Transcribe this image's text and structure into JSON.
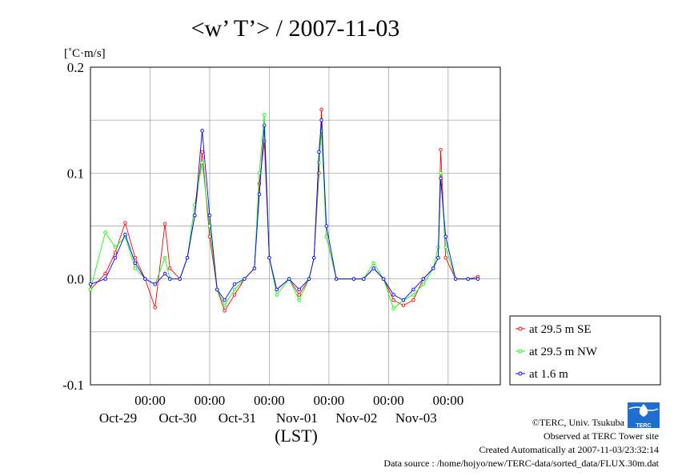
{
  "chart_data": {
    "type": "line",
    "title": "<w’ T’> / 2007-11-03",
    "ylabel": "[˚C·m/s]",
    "xlabel": "(LST)",
    "ylim": [
      -0.1,
      0.2
    ],
    "yticks": [
      "0.2",
      "0.1",
      "0.0",
      "-0.1"
    ],
    "xlim": [
      "2007-10-28T00:00",
      "2007-11-03T21:00"
    ],
    "xticks": [
      {
        "time": "00:00",
        "date": "Oct-29"
      },
      {
        "time": "00:00",
        "date": "Oct-30"
      },
      {
        "time": "00:00",
        "date": "Oct-31"
      },
      {
        "time": "00:00",
        "date": "Nov-01"
      },
      {
        "time": "00:00",
        "date": "Nov-02"
      },
      {
        "time": "00:00",
        "date": "Nov-03"
      }
    ],
    "grid": true,
    "legend_position": "bottom-right outside",
    "series": [
      {
        "name": "at 29.5 m SE",
        "color": "#ff0000",
        "points": [
          [
            "2007-10-28T00:00",
            -0.01
          ],
          [
            "2007-10-28T06:00",
            0.005
          ],
          [
            "2007-10-28T10:00",
            0.025
          ],
          [
            "2007-10-28T14:00",
            0.053
          ],
          [
            "2007-10-28T18:00",
            0.02
          ],
          [
            "2007-10-28T22:00",
            0.0
          ],
          [
            "2007-10-29T02:00",
            -0.027
          ],
          [
            "2007-10-29T06:00",
            0.052
          ],
          [
            "2007-10-29T08:00",
            0.01
          ],
          [
            "2007-10-29T12:00",
            0.0
          ],
          [
            "2007-10-29T15:00",
            0.02
          ],
          [
            "2007-10-29T18:00",
            0.06
          ],
          [
            "2007-10-29T21:00",
            0.12
          ],
          [
            "2007-10-30T00:00",
            0.04
          ],
          [
            "2007-10-30T03:00",
            -0.01
          ],
          [
            "2007-10-30T06:00",
            -0.03
          ],
          [
            "2007-10-30T10:00",
            -0.015
          ],
          [
            "2007-10-30T14:00",
            0.0
          ],
          [
            "2007-10-30T18:00",
            0.01
          ],
          [
            "2007-10-30T20:00",
            0.09
          ],
          [
            "2007-10-30T22:00",
            0.13
          ],
          [
            "2007-10-31T00:00",
            0.02
          ],
          [
            "2007-10-31T03:00",
            -0.01
          ],
          [
            "2007-10-31T08:00",
            0.0
          ],
          [
            "2007-10-31T12:00",
            -0.015
          ],
          [
            "2007-10-31T16:00",
            0.0
          ],
          [
            "2007-10-31T18:00",
            0.02
          ],
          [
            "2007-10-31T20:00",
            0.1
          ],
          [
            "2007-10-31T21:00",
            0.16
          ],
          [
            "2007-10-31T23:00",
            0.04
          ],
          [
            "2007-11-01T03:00",
            0.0
          ],
          [
            "2007-11-01T10:00",
            0.0
          ],
          [
            "2007-11-01T14:00",
            0.0
          ],
          [
            "2007-11-01T18:00",
            0.01
          ],
          [
            "2007-11-01T22:00",
            0.0
          ],
          [
            "2007-11-02T02:00",
            -0.02
          ],
          [
            "2007-11-02T06:00",
            -0.025
          ],
          [
            "2007-11-02T10:00",
            -0.02
          ],
          [
            "2007-11-02T14:00",
            0.0
          ],
          [
            "2007-11-02T18:00",
            0.01
          ],
          [
            "2007-11-02T20:00",
            0.02
          ],
          [
            "2007-11-02T21:00",
            0.122
          ],
          [
            "2007-11-02T23:00",
            0.02
          ],
          [
            "2007-11-03T03:00",
            0.0
          ],
          [
            "2007-11-03T08:00",
            0.0
          ],
          [
            "2007-11-03T12:00",
            0.002
          ]
        ]
      },
      {
        "name": "at 29.5 m NW",
        "color": "#00ff00",
        "points": [
          [
            "2007-10-28T00:00",
            -0.01
          ],
          [
            "2007-10-28T06:00",
            0.044
          ],
          [
            "2007-10-28T10:00",
            0.03
          ],
          [
            "2007-10-28T14:00",
            0.04
          ],
          [
            "2007-10-28T18:00",
            0.01
          ],
          [
            "2007-10-28T22:00",
            0.0
          ],
          [
            "2007-10-29T02:00",
            -0.005
          ],
          [
            "2007-10-29T06:00",
            0.02
          ],
          [
            "2007-10-29T08:00",
            0.0
          ],
          [
            "2007-10-29T12:00",
            0.0
          ],
          [
            "2007-10-29T15:00",
            0.02
          ],
          [
            "2007-10-29T18:00",
            0.07
          ],
          [
            "2007-10-29T21:00",
            0.11
          ],
          [
            "2007-10-30T00:00",
            0.05
          ],
          [
            "2007-10-30T03:00",
            -0.01
          ],
          [
            "2007-10-30T06:00",
            -0.025
          ],
          [
            "2007-10-30T10:00",
            -0.01
          ],
          [
            "2007-10-30T14:00",
            0.0
          ],
          [
            "2007-10-30T18:00",
            0.01
          ],
          [
            "2007-10-30T20:00",
            0.1
          ],
          [
            "2007-10-30T22:00",
            0.155
          ],
          [
            "2007-10-31T00:00",
            0.02
          ],
          [
            "2007-10-31T03:00",
            -0.015
          ],
          [
            "2007-10-31T08:00",
            0.0
          ],
          [
            "2007-10-31T12:00",
            -0.02
          ],
          [
            "2007-10-31T16:00",
            0.0
          ],
          [
            "2007-10-31T18:00",
            0.02
          ],
          [
            "2007-10-31T20:00",
            0.11
          ],
          [
            "2007-10-31T21:00",
            0.14
          ],
          [
            "2007-10-31T23:00",
            0.04
          ],
          [
            "2007-11-01T03:00",
            0.0
          ],
          [
            "2007-11-01T10:00",
            0.0
          ],
          [
            "2007-11-01T14:00",
            0.0
          ],
          [
            "2007-11-01T18:00",
            0.015
          ],
          [
            "2007-11-01T22:00",
            0.0
          ],
          [
            "2007-11-02T02:00",
            -0.028
          ],
          [
            "2007-11-02T06:00",
            -0.02
          ],
          [
            "2007-11-02T10:00",
            -0.015
          ],
          [
            "2007-11-02T14:00",
            -0.005
          ],
          [
            "2007-11-02T18:00",
            0.01
          ],
          [
            "2007-11-02T20:00",
            0.03
          ],
          [
            "2007-11-02T21:00",
            0.1
          ],
          [
            "2007-11-02T23:00",
            0.03
          ],
          [
            "2007-11-03T03:00",
            0.0
          ],
          [
            "2007-11-03T08:00",
            0.0
          ],
          [
            "2007-11-03T12:00",
            0.0
          ]
        ]
      },
      {
        "name": "at 1.6 m",
        "color": "#0000ff",
        "points": [
          [
            "2007-10-28T00:00",
            -0.005
          ],
          [
            "2007-10-28T06:00",
            0.0
          ],
          [
            "2007-10-28T10:00",
            0.02
          ],
          [
            "2007-10-28T14:00",
            0.042
          ],
          [
            "2007-10-28T18:00",
            0.015
          ],
          [
            "2007-10-28T22:00",
            0.0
          ],
          [
            "2007-10-29T02:00",
            -0.005
          ],
          [
            "2007-10-29T06:00",
            0.005
          ],
          [
            "2007-10-29T08:00",
            0.0
          ],
          [
            "2007-10-29T12:00",
            0.0
          ],
          [
            "2007-10-29T15:00",
            0.02
          ],
          [
            "2007-10-29T18:00",
            0.06
          ],
          [
            "2007-10-29T21:00",
            0.14
          ],
          [
            "2007-10-30T00:00",
            0.06
          ],
          [
            "2007-10-30T03:00",
            -0.01
          ],
          [
            "2007-10-30T06:00",
            -0.02
          ],
          [
            "2007-10-30T10:00",
            -0.005
          ],
          [
            "2007-10-30T14:00",
            0.0
          ],
          [
            "2007-10-30T18:00",
            0.01
          ],
          [
            "2007-10-30T20:00",
            0.08
          ],
          [
            "2007-10-30T22:00",
            0.145
          ],
          [
            "2007-10-31T00:00",
            0.02
          ],
          [
            "2007-10-31T03:00",
            -0.01
          ],
          [
            "2007-10-31T08:00",
            0.0
          ],
          [
            "2007-10-31T12:00",
            -0.01
          ],
          [
            "2007-10-31T16:00",
            0.0
          ],
          [
            "2007-10-31T18:00",
            0.02
          ],
          [
            "2007-10-31T20:00",
            0.12
          ],
          [
            "2007-10-31T21:00",
            0.15
          ],
          [
            "2007-10-31T23:00",
            0.05
          ],
          [
            "2007-11-01T03:00",
            0.0
          ],
          [
            "2007-11-01T10:00",
            0.0
          ],
          [
            "2007-11-01T14:00",
            0.0
          ],
          [
            "2007-11-01T18:00",
            0.01
          ],
          [
            "2007-11-01T22:00",
            0.0
          ],
          [
            "2007-11-02T02:00",
            -0.015
          ],
          [
            "2007-11-02T06:00",
            -0.02
          ],
          [
            "2007-11-02T10:00",
            -0.01
          ],
          [
            "2007-11-02T14:00",
            0.0
          ],
          [
            "2007-11-02T18:00",
            0.01
          ],
          [
            "2007-11-02T20:00",
            0.02
          ],
          [
            "2007-11-02T21:00",
            0.095
          ],
          [
            "2007-11-02T23:00",
            0.04
          ],
          [
            "2007-11-03T03:00",
            0.0
          ],
          [
            "2007-11-03T08:00",
            0.0
          ],
          [
            "2007-11-03T12:00",
            0.0
          ]
        ]
      }
    ]
  },
  "footer": {
    "copyright": "©TERC, Univ. Tsukuba",
    "observed": "Observed at TERC Tower site",
    "created": "Created Automatically at 2007-11-03/23:32:14",
    "source": "Data source : /home/hojyo/new/TERC-data/sorted_data/FLUX.30m.dat",
    "logo_text": "TERC"
  }
}
